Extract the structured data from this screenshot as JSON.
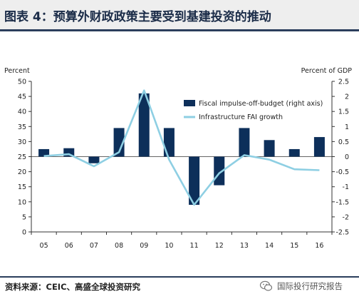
{
  "header": {
    "title": "图表 4：预算外财政政策主要受到基建投资的推动"
  },
  "footer": {
    "source": "资料来源：CEIC、高盛全球投资研究",
    "watermark": "国际投行研究报告",
    "watermark_icon": "wechat-icon"
  },
  "colors": {
    "bar": "#0d2f5a",
    "line": "#8ecfe3",
    "header_rule": "#2b3e5c",
    "header_bg": "#eeeeee"
  },
  "chart_data": {
    "type": "bar+line",
    "categories": [
      "05",
      "06",
      "07",
      "08",
      "09",
      "10",
      "11",
      "12",
      "13",
      "14",
      "15",
      "16"
    ],
    "left_axis": {
      "unit_label": "Percent",
      "ylim": [
        0,
        50
      ],
      "ticks": [
        "0",
        "5",
        "10",
        "15",
        "20",
        "25",
        "30",
        "35",
        "40",
        "45",
        "50"
      ]
    },
    "right_axis": {
      "unit_label": "Percent of GDP",
      "ylim": [
        -2.5,
        2.5
      ],
      "ticks": [
        "-2.5",
        "-2",
        "-1.5",
        "-1",
        "-0.5",
        "0",
        "0.5",
        "1",
        "1.5",
        "2",
        "2.5"
      ]
    },
    "series": [
      {
        "name": "Fiscal impulse-off-budget (right axis)",
        "type": "bar",
        "axis": "right",
        "values": [
          0.25,
          0.28,
          -0.22,
          0.95,
          2.1,
          0.95,
          -1.6,
          -0.95,
          0.95,
          0.55,
          0.25,
          0.65
        ]
      },
      {
        "name": "Infrastructure FAI growth",
        "type": "line",
        "axis": "left",
        "values": [
          25.2,
          25.8,
          21.8,
          26.5,
          47.0,
          24.0,
          9.0,
          19.5,
          25.5,
          24.0,
          20.8,
          20.5
        ]
      }
    ]
  }
}
